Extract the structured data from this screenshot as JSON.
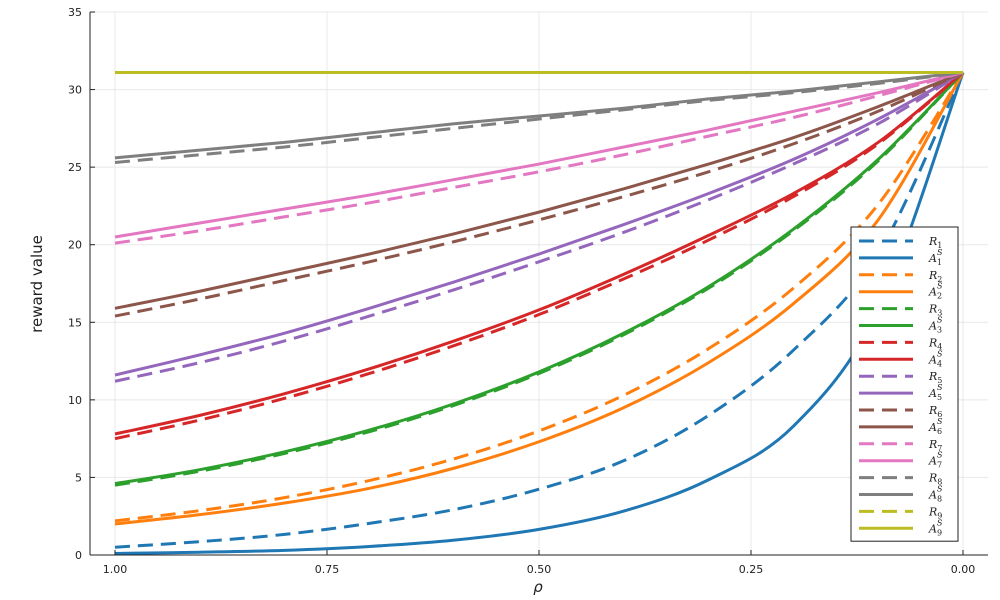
{
  "chart_data": {
    "type": "line",
    "title": "",
    "xlabel": "ρ",
    "ylabel": "reward value",
    "xlim": [
      1.0,
      0.0
    ],
    "x_reversed": true,
    "ylim": [
      0,
      35
    ],
    "xticks": [
      1.0,
      0.75,
      0.5,
      0.25,
      0.0
    ],
    "xtick_labels": [
      "1.00",
      "0.75",
      "0.50",
      "0.25",
      "0.00"
    ],
    "yticks": [
      0,
      5,
      10,
      15,
      20,
      25,
      30,
      35
    ],
    "ytick_labels": [
      "0",
      "5",
      "10",
      "15",
      "20",
      "25",
      "30",
      "35"
    ],
    "grid": true,
    "legend_position": "right",
    "x": [
      1.0,
      0.9,
      0.8,
      0.7,
      0.6,
      0.5,
      0.4,
      0.3,
      0.2,
      0.1,
      0.0
    ],
    "series": [
      {
        "name": "R_1",
        "base": "R",
        "sub": "1",
        "sup": "",
        "style": "dashed",
        "color": "#1f77b4",
        "values": [
          0.5,
          0.86,
          1.33,
          2.04,
          2.93,
          4.24,
          6.08,
          9.0,
          13.2,
          19.4,
          31.1
        ]
      },
      {
        "name": "A_1^S",
        "base": "A",
        "sub": "1",
        "sup": "S",
        "style": "solid",
        "color": "#1f77b4",
        "values": [
          0.1,
          0.18,
          0.3,
          0.55,
          0.96,
          1.65,
          2.83,
          4.85,
          8.3,
          15.8,
          31.1
        ]
      },
      {
        "name": "R_2",
        "base": "R",
        "sub": "2",
        "sup": "",
        "style": "dashed",
        "color": "#ff7f0e",
        "values": [
          2.2,
          2.86,
          3.7,
          4.8,
          6.2,
          8.0,
          10.3,
          13.3,
          17.2,
          22.6,
          31.1
        ]
      },
      {
        "name": "A_2^S",
        "base": "A",
        "sub": "2",
        "sup": "S",
        "style": "solid",
        "color": "#ff7f0e",
        "values": [
          2.0,
          2.6,
          3.35,
          4.3,
          5.6,
          7.3,
          9.5,
          12.4,
          16.2,
          21.6,
          31.1
        ]
      },
      {
        "name": "R_3",
        "base": "R",
        "sub": "3",
        "sup": "",
        "style": "dashed",
        "color": "#2ca02c",
        "values": [
          4.5,
          5.4,
          6.55,
          7.95,
          9.65,
          11.7,
          14.2,
          17.2,
          20.9,
          25.4,
          31.1
        ]
      },
      {
        "name": "A_3^S",
        "base": "A",
        "sub": "3",
        "sup": "S",
        "style": "solid",
        "color": "#2ca02c",
        "values": [
          4.6,
          5.5,
          6.65,
          8.05,
          9.75,
          11.8,
          14.3,
          17.3,
          21.0,
          25.5,
          31.1
        ]
      },
      {
        "name": "R_4",
        "base": "R",
        "sub": "4",
        "sup": "",
        "style": "dashed",
        "color": "#d62728",
        "values": [
          7.5,
          8.7,
          10.1,
          11.7,
          13.5,
          15.5,
          17.8,
          20.3,
          23.1,
          26.5,
          31.1
        ]
      },
      {
        "name": "A_4^S",
        "base": "A",
        "sub": "4",
        "sup": "S",
        "style": "solid",
        "color": "#d62728",
        "values": [
          7.8,
          9.0,
          10.4,
          12.0,
          13.8,
          15.8,
          18.1,
          20.6,
          23.3,
          26.6,
          31.1
        ]
      },
      {
        "name": "R_5",
        "base": "R",
        "sub": "5",
        "sup": "",
        "style": "dashed",
        "color": "#9467bd",
        "values": [
          11.2,
          12.4,
          13.8,
          15.4,
          17.1,
          18.9,
          20.8,
          22.9,
          25.2,
          27.8,
          31.1
        ]
      },
      {
        "name": "A_5^S",
        "base": "A",
        "sub": "5",
        "sup": "S",
        "style": "solid",
        "color": "#9467bd",
        "values": [
          11.6,
          12.9,
          14.3,
          15.9,
          17.6,
          19.4,
          21.3,
          23.3,
          25.5,
          28.1,
          31.1
        ]
      },
      {
        "name": "R_6",
        "base": "R",
        "sub": "6",
        "sup": "",
        "style": "dashed",
        "color": "#8c564b",
        "values": [
          15.4,
          16.5,
          17.7,
          18.9,
          20.2,
          21.6,
          23.1,
          24.7,
          26.5,
          28.6,
          31.1
        ]
      },
      {
        "name": "A_6^S",
        "base": "A",
        "sub": "6",
        "sup": "S",
        "style": "solid",
        "color": "#8c564b",
        "values": [
          15.9,
          17.0,
          18.2,
          19.4,
          20.7,
          22.1,
          23.6,
          25.2,
          26.9,
          28.9,
          31.1
        ]
      },
      {
        "name": "R_7",
        "base": "R",
        "sub": "7",
        "sup": "",
        "style": "dashed",
        "color": "#e377c2",
        "values": [
          20.1,
          20.9,
          21.8,
          22.7,
          23.7,
          24.7,
          25.8,
          27.0,
          28.2,
          29.6,
          31.1
        ]
      },
      {
        "name": "A_7^S",
        "base": "A",
        "sub": "7",
        "sup": "S",
        "style": "solid",
        "color": "#e377c2",
        "values": [
          20.5,
          21.4,
          22.3,
          23.2,
          24.2,
          25.2,
          26.3,
          27.4,
          28.6,
          29.8,
          31.1
        ]
      },
      {
        "name": "R_8",
        "base": "R",
        "sub": "8",
        "sup": "",
        "style": "dashed",
        "color": "#7f7f7f",
        "values": [
          25.3,
          25.8,
          26.3,
          26.9,
          27.5,
          28.1,
          28.7,
          29.3,
          29.8,
          30.4,
          31.1
        ]
      },
      {
        "name": "A_8^S",
        "base": "A",
        "sub": "8",
        "sup": "S",
        "style": "solid",
        "color": "#7f7f7f",
        "values": [
          25.6,
          26.1,
          26.6,
          27.2,
          27.8,
          28.3,
          28.8,
          29.4,
          29.9,
          30.5,
          31.1
        ]
      },
      {
        "name": "R_9",
        "base": "R",
        "sub": "9",
        "sup": "",
        "style": "dashed",
        "color": "#bcbd22",
        "values": [
          31.1,
          31.1,
          31.1,
          31.1,
          31.1,
          31.1,
          31.1,
          31.1,
          31.1,
          31.1,
          31.1
        ]
      },
      {
        "name": "A_9^S",
        "base": "A",
        "sub": "9",
        "sup": "S",
        "style": "solid",
        "color": "#bcbd22",
        "values": [
          31.1,
          31.1,
          31.1,
          31.1,
          31.1,
          31.1,
          31.1,
          31.1,
          31.1,
          31.1,
          31.1
        ]
      }
    ]
  }
}
